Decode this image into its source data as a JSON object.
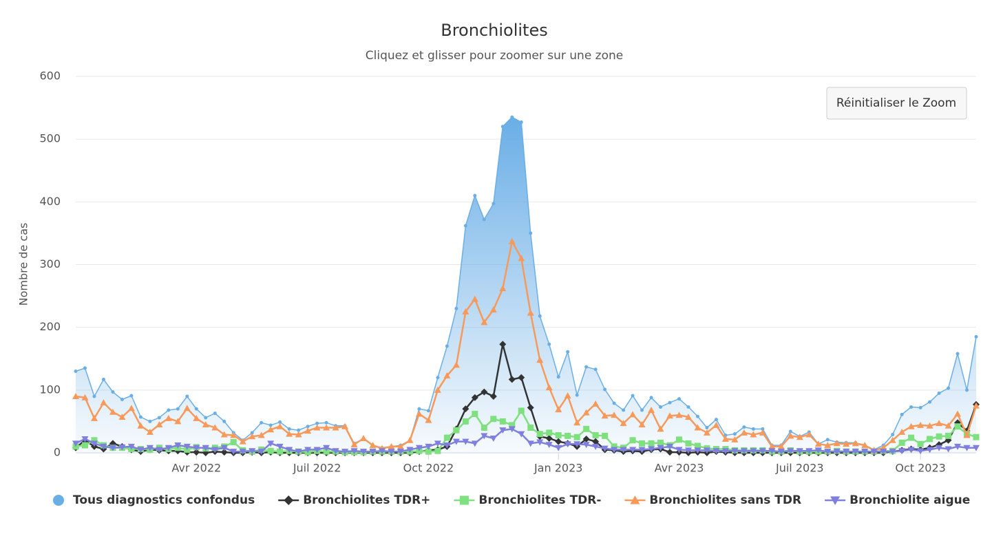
{
  "chart_data": {
    "type": "line",
    "title": "Bronchiolites",
    "subtitle": "Cliquez et glisser pour zoomer sur une zone",
    "y_label": "Nombre de cas",
    "button": "Réinitialiser le Zoom",
    "ylim": [
      0,
      600
    ],
    "yticks": [
      0,
      100,
      200,
      300,
      400,
      500,
      600
    ],
    "grid": true,
    "legend": "bottom",
    "categories": [
      null,
      null,
      null,
      null,
      null,
      null,
      null,
      null,
      null,
      null,
      null,
      null,
      null,
      "Avr 2022",
      null,
      null,
      null,
      null,
      null,
      null,
      null,
      null,
      null,
      null,
      null,
      null,
      "Juil 2022",
      null,
      null,
      null,
      null,
      null,
      null,
      null,
      null,
      null,
      null,
      null,
      "Oct 2022",
      null,
      null,
      null,
      null,
      null,
      null,
      null,
      null,
      null,
      null,
      null,
      null,
      null,
      "Jan 2023",
      null,
      null,
      null,
      null,
      null,
      null,
      null,
      null,
      null,
      null,
      null,
      null,
      "Avr 2023",
      null,
      null,
      null,
      null,
      null,
      null,
      null,
      null,
      null,
      null,
      null,
      null,
      "Juil 2023",
      null,
      null,
      null,
      null,
      null,
      null,
      null,
      null,
      null,
      null,
      null,
      null,
      "Oct 2023",
      null,
      null,
      null,
      null,
      null,
      null
    ],
    "series": [
      {
        "name": "Tous diagnostics confondus",
        "color": "#6aaee6",
        "type": "area",
        "marker": "circle",
        "values": [
          130,
          135,
          90,
          117,
          97,
          85,
          91,
          57,
          50,
          56,
          68,
          70,
          90,
          70,
          56,
          63,
          50,
          32,
          20,
          32,
          48,
          44,
          49,
          38,
          36,
          42,
          47,
          48,
          43,
          43,
          15,
          22,
          12,
          8,
          10,
          12,
          20,
          70,
          67,
          120,
          170,
          230,
          362,
          410,
          372,
          397,
          520,
          535,
          527,
          350,
          218,
          173,
          121,
          161,
          92,
          137,
          133,
          101,
          79,
          68,
          91,
          68,
          88,
          73,
          80,
          86,
          73,
          58,
          40,
          53,
          28,
          30,
          41,
          38,
          38,
          12,
          12,
          34,
          26,
          33,
          14,
          21,
          17,
          16,
          16,
          12,
          5,
          12,
          29,
          61,
          73,
          72,
          81,
          95,
          103,
          158,
          100,
          185
        ]
      },
      {
        "name": "Bronchiolites TDR+",
        "color": "#333333",
        "type": "line",
        "marker": "diamond",
        "values": [
          8,
          20,
          10,
          6,
          15,
          10,
          5,
          2,
          5,
          4,
          3,
          3,
          1,
          1,
          0,
          2,
          1,
          0,
          0,
          1,
          0,
          1,
          0,
          0,
          0,
          0,
          0,
          0,
          0,
          0,
          0,
          0,
          0,
          0,
          0,
          0,
          0,
          2,
          4,
          5,
          10,
          38,
          70,
          88,
          97,
          90,
          173,
          117,
          120,
          72,
          26,
          23,
          18,
          15,
          10,
          22,
          18,
          5,
          4,
          2,
          3,
          2,
          5,
          6,
          1,
          1,
          0,
          1,
          0,
          2,
          1,
          0,
          0,
          0,
          0,
          0,
          0,
          0,
          0,
          0,
          0,
          0,
          0,
          0,
          0,
          0,
          0,
          0,
          2,
          4,
          6,
          5,
          8,
          13,
          20,
          48,
          35,
          77
        ]
      },
      {
        "name": "Bronchiolites TDR-",
        "color": "#7ee07e",
        "type": "line",
        "marker": "square",
        "values": [
          10,
          12,
          20,
          12,
          8,
          8,
          6,
          6,
          5,
          8,
          6,
          8,
          5,
          9,
          7,
          8,
          10,
          17,
          4,
          2,
          5,
          3,
          2,
          3,
          2,
          1,
          3,
          2,
          2,
          1,
          1,
          1,
          2,
          2,
          2,
          2,
          2,
          3,
          2,
          3,
          24,
          36,
          50,
          62,
          40,
          54,
          50,
          44,
          67,
          40,
          30,
          32,
          28,
          27,
          25,
          38,
          28,
          27,
          10,
          8,
          20,
          15,
          15,
          16,
          12,
          21,
          15,
          11,
          7,
          6,
          6,
          4,
          4,
          4,
          4,
          2,
          2,
          4,
          2,
          2,
          2,
          2,
          3,
          2,
          2,
          2,
          2,
          3,
          3,
          16,
          24,
          14,
          22,
          26,
          27,
          42,
          30,
          25
        ]
      },
      {
        "name": "Bronchiolites sans TDR",
        "color": "#f7995a",
        "type": "line",
        "marker": "triangle",
        "values": [
          90,
          88,
          55,
          80,
          65,
          57,
          71,
          43,
          33,
          45,
          55,
          50,
          71,
          55,
          45,
          40,
          29,
          28,
          18,
          26,
          28,
          37,
          42,
          30,
          29,
          35,
          40,
          40,
          40,
          42,
          13,
          23,
          12,
          7,
          10,
          10,
          20,
          62,
          52,
          100,
          123,
          140,
          225,
          245,
          208,
          228,
          262,
          337,
          310,
          223,
          148,
          104,
          69,
          91,
          48,
          64,
          78,
          59,
          60,
          47,
          61,
          45,
          68,
          38,
          59,
          60,
          57,
          40,
          32,
          44,
          22,
          21,
          32,
          29,
          32,
          10,
          10,
          27,
          25,
          29,
          14,
          12,
          15,
          14,
          15,
          12,
          4,
          8,
          20,
          33,
          42,
          44,
          43,
          47,
          43,
          62,
          28,
          75
        ]
      },
      {
        "name": "Bronchiolite aigue",
        "color": "#7f7fdf",
        "type": "line",
        "marker": "triangle-down",
        "values": [
          15,
          22,
          15,
          10,
          8,
          9,
          10,
          5,
          8,
          5,
          8,
          12,
          10,
          8,
          8,
          5,
          8,
          2,
          2,
          3,
          2,
          15,
          10,
          5,
          2,
          5,
          5,
          8,
          3,
          2,
          3,
          2,
          2,
          3,
          2,
          2,
          5,
          8,
          10,
          15,
          12,
          18,
          18,
          15,
          27,
          23,
          36,
          38,
          30,
          15,
          17,
          13,
          8,
          14,
          14,
          13,
          10,
          7,
          5,
          5,
          5,
          5,
          6,
          8,
          10,
          5,
          4,
          4,
          4,
          3,
          3,
          3,
          3,
          3,
          3,
          3,
          2,
          3,
          3,
          3,
          4,
          2,
          2,
          2,
          2,
          2,
          2,
          2,
          2,
          3,
          5,
          3,
          5,
          8,
          6,
          10,
          8,
          8
        ]
      }
    ]
  }
}
